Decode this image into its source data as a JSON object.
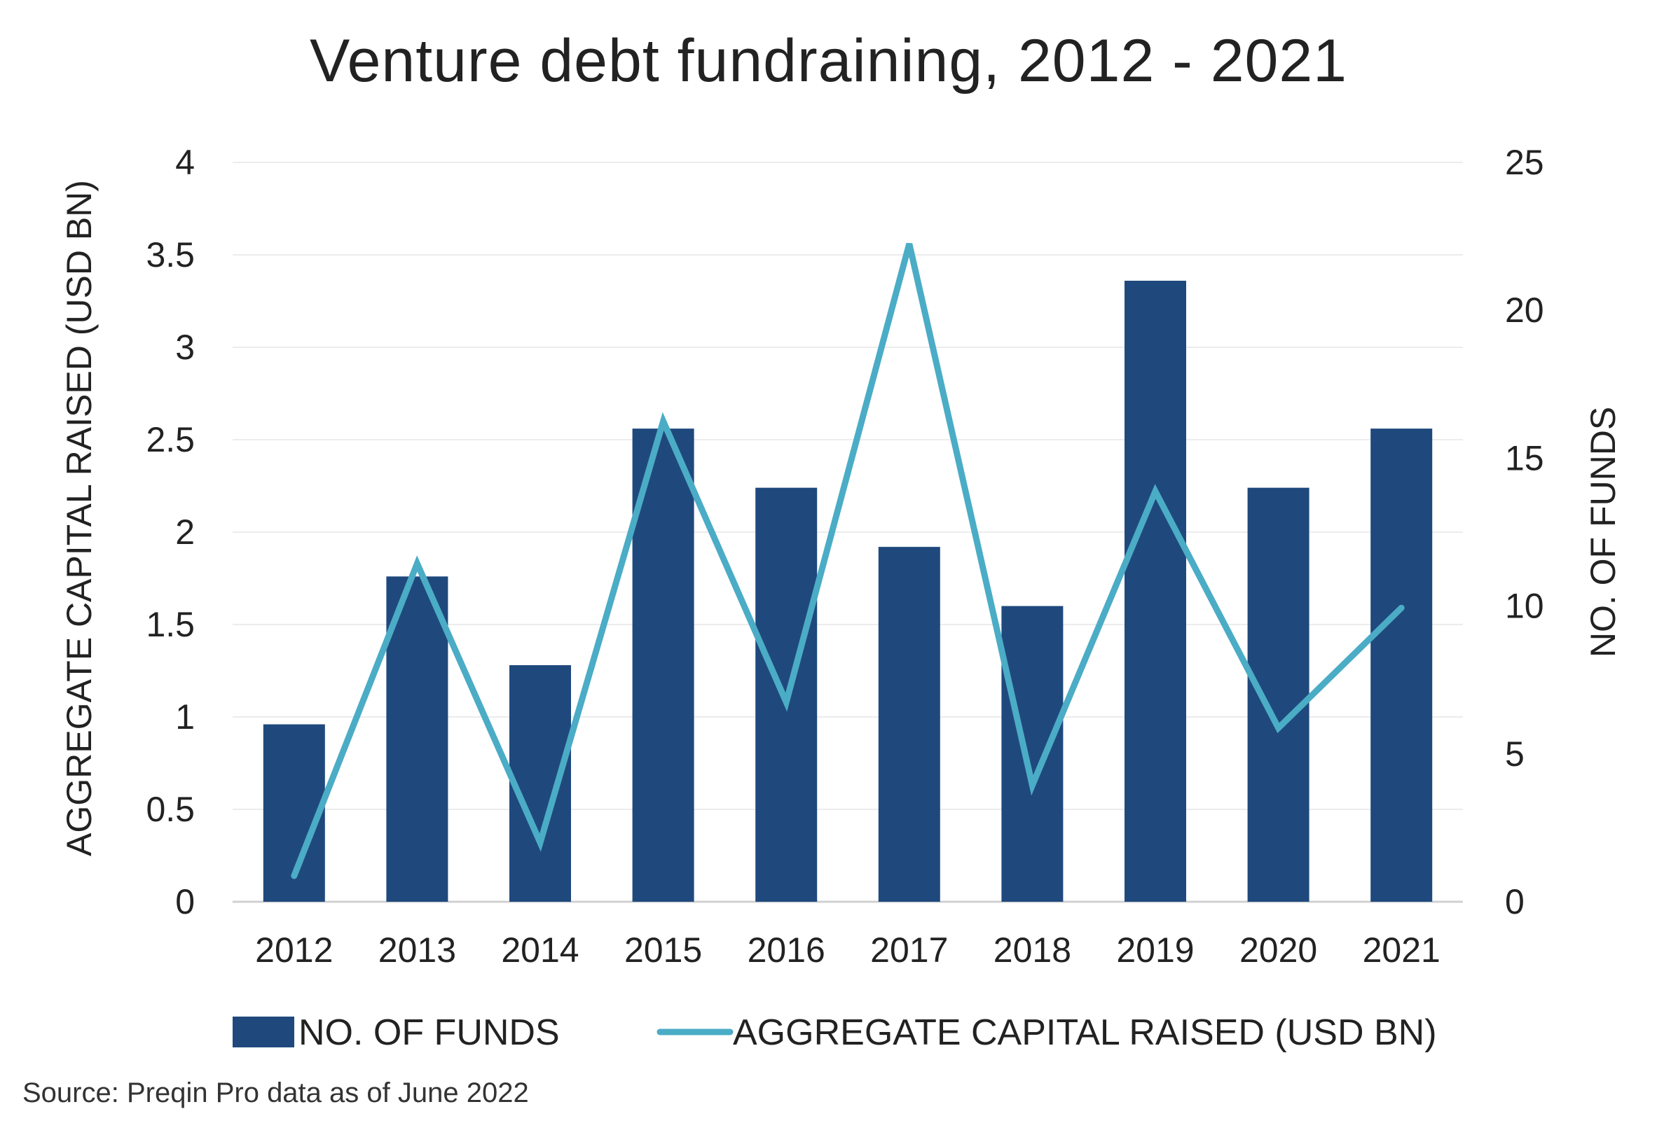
{
  "chart_data": {
    "type": "bar",
    "title": "Venture debt fundraining, 2012 - 2021",
    "categories": [
      "2012",
      "2013",
      "2014",
      "2015",
      "2016",
      "2017",
      "2018",
      "2019",
      "2020",
      "2021"
    ],
    "series": [
      {
        "name": "NO. OF FUNDS",
        "type": "bar",
        "axis": "right",
        "values": [
          6,
          11,
          8,
          16,
          14,
          12,
          10,
          21,
          14,
          16
        ],
        "color": "#1f497d"
      },
      {
        "name": "AGGREGATE CAPITAL RAISED (USD BN)",
        "type": "line",
        "axis": "left",
        "values": [
          0.14,
          1.83,
          0.32,
          2.6,
          1.08,
          3.56,
          0.63,
          2.22,
          0.94,
          1.59
        ],
        "color": "#4bacc6"
      }
    ],
    "y_left": {
      "label": "AGGREGATE CAPITAL RAISED (USD BN)",
      "ylim": [
        0,
        4
      ],
      "ticks": [
        "0",
        "0.5",
        "1",
        "1.5",
        "2",
        "2.5",
        "3",
        "3.5",
        "4"
      ]
    },
    "y_right": {
      "label": "NO. OF FUNDS",
      "ylim": [
        0,
        25
      ],
      "ticks": [
        "0",
        "5",
        "10",
        "15",
        "20",
        "25"
      ]
    },
    "grid": true,
    "legend_position": "bottom",
    "source": "Source: Preqin Pro data as of June 2022"
  }
}
